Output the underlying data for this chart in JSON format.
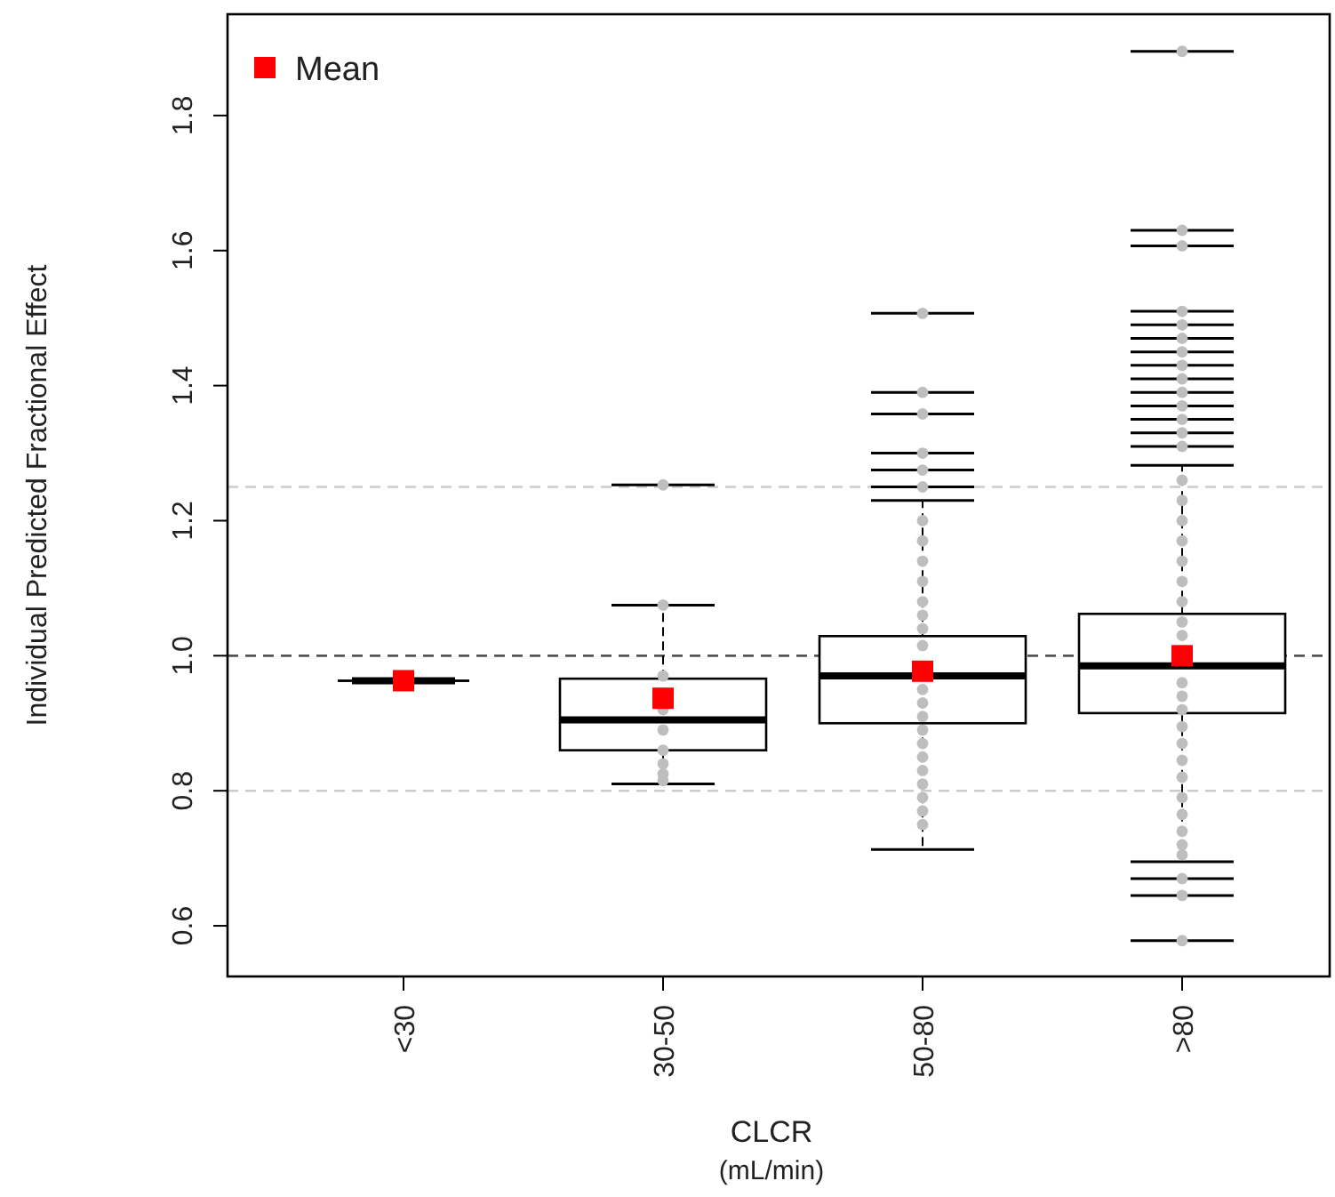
{
  "chart_data": {
    "type": "box",
    "categories": [
      "<30",
      "30-50",
      "50-80",
      ">80"
    ],
    "xlabel": "CLCR\n(mL/min)",
    "ylabel": "Individual Predicted Fractional Effect",
    "ylim": [
      0.525,
      1.95
    ],
    "yticks": [
      0.6,
      0.8,
      {
        "value": 1,
        "label": "1.0"
      },
      1.2,
      1.4,
      1.6,
      1.8
    ],
    "legend": "top left",
    "grid": false,
    "ref_lines": [
      {
        "axis": "y",
        "value": 1,
        "color": "#555555",
        "line_style": "dashed"
      },
      {
        "axis": "y",
        "value": 1.25,
        "color": "#cccccc",
        "line_style": "dashed"
      },
      {
        "axis": "y",
        "value": 0.8,
        "color": "#cccccc",
        "line_style": "dashed"
      }
    ],
    "series": [
      {
        "type": "box",
        "color": "#000000",
        "boxes": [
          {
            "low": 0.963,
            "q1": 0.963,
            "median": 0.963,
            "q3": 0.963,
            "high": 0.963
          },
          {
            "low": 0.81,
            "q1": 0.86,
            "median": 0.905,
            "q3": 0.966,
            "high": 1.075,
            "outliers": [
              1.253
            ]
          },
          {
            "low": 0.713,
            "q1": 0.9,
            "median": 0.97,
            "q3": 1.029,
            "high": 1.23,
            "outliers": [
              1.507,
              1.39,
              1.358,
              1.3,
              1.275,
              1.25
            ]
          },
          {
            "low": 0.695,
            "q1": 0.915,
            "median": 0.985,
            "q3": 1.062,
            "high": 1.282,
            "outliers": [
              1.895,
              1.63,
              1.607,
              1.51,
              1.49,
              1.47,
              1.45,
              1.43,
              1.41,
              1.39,
              1.37,
              1.35,
              1.33,
              1.31,
              0.67,
              0.645,
              0.578
            ]
          }
        ]
      },
      {
        "type": "scatter",
        "color": "#bebebe",
        "x": [
          "30-50",
          "30-50",
          "30-50",
          "30-50",
          "30-50",
          "30-50",
          "30-50",
          "30-50",
          "50-80",
          "50-80",
          "50-80",
          "50-80",
          "50-80",
          "50-80",
          "50-80",
          "50-80",
          "50-80",
          "50-80",
          "50-80",
          "50-80",
          "50-80",
          "50-80",
          "50-80",
          "50-80",
          "50-80",
          "50-80",
          "50-80",
          ">80",
          ">80",
          ">80",
          ">80",
          ">80",
          ">80",
          ">80",
          ">80",
          ">80",
          ">80",
          ">80",
          ">80",
          ">80",
          ">80",
          ">80",
          ">80",
          ">80",
          ">80",
          ">80",
          ">80",
          ">80"
        ],
        "values": [
          0.97,
          0.92,
          0.89,
          0.86,
          0.84,
          0.825,
          0.815,
          1.075,
          1.2,
          1.17,
          1.14,
          1.11,
          1.08,
          1.06,
          1.04,
          1.015,
          0.95,
          0.93,
          0.91,
          0.89,
          0.87,
          0.85,
          0.83,
          0.81,
          0.79,
          0.77,
          0.75,
          1.26,
          1.23,
          1.2,
          1.17,
          1.14,
          1.11,
          1.08,
          1.05,
          1.03,
          0.96,
          0.94,
          0.92,
          0.895,
          0.87,
          0.845,
          0.82,
          0.79,
          0.765,
          0.74,
          0.72,
          0.705
        ]
      },
      {
        "type": "scatter",
        "name": "Mean",
        "color": "#ff0000",
        "marker": "square",
        "x": [
          "<30",
          "30-50",
          "50-80",
          ">80"
        ],
        "values": [
          0.963,
          0.937,
          0.977,
          1.0
        ]
      }
    ]
  }
}
